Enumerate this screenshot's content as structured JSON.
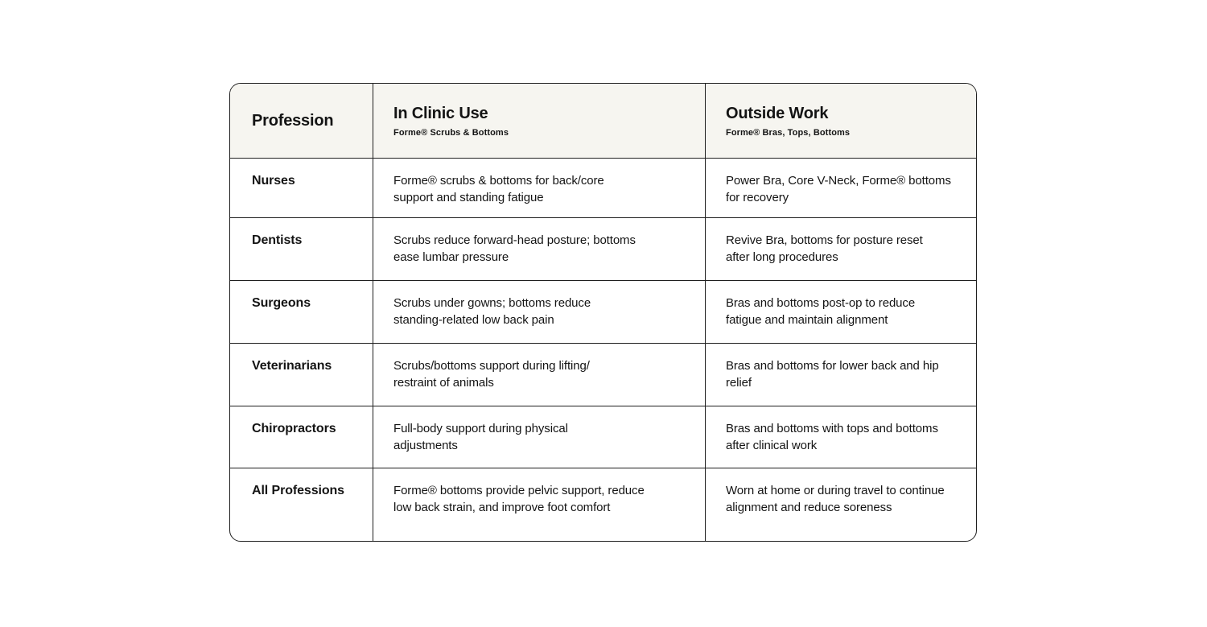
{
  "colors": {
    "page_bg": "#ffffff",
    "header_bg": "#f6f5f0",
    "row_bg": "#ffffff",
    "border": "#1f1f1f",
    "text": "#141414"
  },
  "table": {
    "columns": [
      {
        "label": "Profession",
        "sublabel": ""
      },
      {
        "label": "In Clinic Use",
        "sublabel": "Forme® Scrubs & Bottoms"
      },
      {
        "label": "Outside Work",
        "sublabel": "Forme® Bras, Tops, Bottoms"
      }
    ],
    "rows": [
      {
        "profession": "Nurses",
        "clinic": "Forme® scrubs & bottoms for back/core\nsupport and standing fatigue",
        "outside": "Power Bra, Core V-Neck, Forme® bottoms\nfor recovery"
      },
      {
        "profession": "Dentists",
        "clinic": "Scrubs reduce forward-head posture; bottoms\nease lumbar pressure",
        "outside": "Revive Bra, bottoms for posture reset\nafter long procedures"
      },
      {
        "profession": "Surgeons",
        "clinic": "Scrubs under gowns; bottoms reduce\nstanding-related low back pain",
        "outside": "Bras and bottoms post-op to reduce\nfatigue and maintain alignment"
      },
      {
        "profession": "Veterinarians",
        "clinic": "Scrubs/bottoms support during lifting/\nrestraint of animals",
        "outside": "Bras and bottoms for lower back and hip\nrelief"
      },
      {
        "profession": "Chiropractors",
        "clinic": "Full-body support during physical\nadjustments",
        "outside": "Bras and bottoms with tops and bottoms\nafter clinical work"
      },
      {
        "profession": "All Professions",
        "clinic": "Forme® bottoms provide pelvic support, reduce\nlow back strain, and improve foot comfort",
        "outside": "Worn at home or during travel to continue\nalignment and reduce soreness"
      }
    ]
  }
}
